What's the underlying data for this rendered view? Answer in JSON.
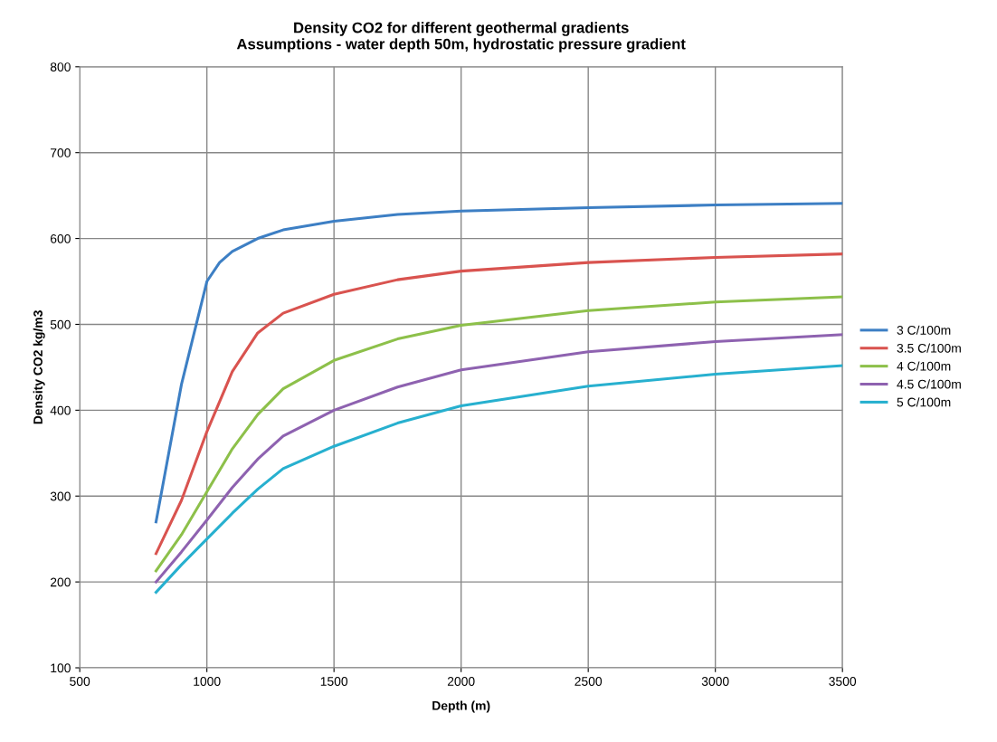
{
  "chart_data": {
    "type": "line",
    "title": "Density CO2 for different geothermal gradients\nAssumptions - water depth 50m, hydrostatic pressure gradient",
    "xlabel": "Depth (m)",
    "ylabel": "Density CO2 kg/m3",
    "xlim": [
      500,
      3500
    ],
    "xticks": [
      500,
      1000,
      1500,
      2000,
      2500,
      3000,
      3500
    ],
    "ylim": [
      100,
      800
    ],
    "yticks": [
      100,
      200,
      300,
      400,
      500,
      600,
      700,
      800
    ],
    "grid": true,
    "legend": "right",
    "marker": "none",
    "line_style": "solid",
    "series": [
      {
        "name": "3 C/100m",
        "color": "#3d7fc4",
        "x": [
          800,
          850,
          900,
          950,
          1000,
          1050,
          1100,
          1200,
          1300,
          1500,
          1750,
          2000,
          2500,
          3000,
          3500
        ],
        "values": [
          270,
          350,
          430,
          490,
          550,
          572,
          585,
          600,
          610,
          620,
          628,
          632,
          636,
          639,
          641
        ]
      },
      {
        "name": "3.5 C/100m",
        "color": "#d9534f",
        "x": [
          800,
          900,
          1000,
          1100,
          1200,
          1300,
          1500,
          1750,
          2000,
          2500,
          3000,
          3500
        ],
        "values": [
          233,
          295,
          375,
          445,
          490,
          513,
          535,
          552,
          562,
          572,
          578,
          582
        ]
      },
      {
        "name": "4 C/100m",
        "color": "#8dc04a",
        "x": [
          800,
          900,
          1000,
          1100,
          1200,
          1300,
          1500,
          1750,
          2000,
          2500,
          3000,
          3500
        ],
        "values": [
          213,
          255,
          305,
          355,
          395,
          425,
          458,
          483,
          499,
          516,
          526,
          532
        ]
      },
      {
        "name": "4.5 C/100m",
        "color": "#8e62b0",
        "x": [
          800,
          900,
          1000,
          1100,
          1200,
          1300,
          1500,
          1750,
          2000,
          2500,
          3000,
          3500
        ],
        "values": [
          200,
          235,
          272,
          310,
          343,
          370,
          400,
          427,
          447,
          468,
          480,
          488
        ]
      },
      {
        "name": "5 C/100m",
        "color": "#27b0cf",
        "x": [
          800,
          900,
          1000,
          1100,
          1200,
          1300,
          1500,
          1750,
          2000,
          2500,
          3000,
          3500
        ],
        "values": [
          188,
          220,
          250,
          280,
          308,
          332,
          358,
          385,
          405,
          428,
          442,
          452
        ]
      }
    ]
  }
}
